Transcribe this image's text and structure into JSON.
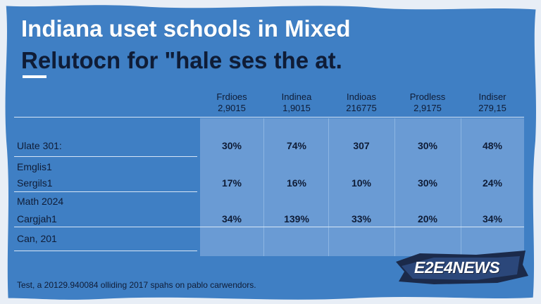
{
  "title": {
    "line1": "Indiana uset schools in Mixed",
    "line2": "Relutocn for \"hale ses the at."
  },
  "columns": [
    {
      "name": "Frdioes",
      "sub": "2,9015"
    },
    {
      "name": "Indinea",
      "sub": "1,9015"
    },
    {
      "name": "Indioas",
      "sub": "216775"
    },
    {
      "name": "Prodless",
      "sub": "2,9175"
    },
    {
      "name": "Indiser",
      "sub": "279,15"
    }
  ],
  "rows": [
    {
      "label": "Ulate 301:",
      "values": [
        "30%",
        "74%",
        "307",
        "30%",
        "48%"
      ]
    },
    {
      "label": "Emglis1",
      "values": []
    },
    {
      "label": "Sergils1",
      "values": [
        "17%",
        "16%",
        "10%",
        "30%",
        "24%"
      ]
    },
    {
      "label": "Math 2024",
      "values": []
    },
    {
      "label": "Cargjah1",
      "values": [
        "34%",
        "139%",
        "33%",
        "20%",
        "34%"
      ]
    },
    {
      "label": "Can, 201",
      "values": []
    }
  ],
  "footer": "Test, a 20129.940084 olliding 2017 spahs on pablo carwendors.",
  "logo": "E2E4NEWS",
  "colors": {
    "background": "#3f7fc4",
    "panel": "#6f9fd6",
    "title": "#ffffff",
    "text": "#0f1c36"
  }
}
